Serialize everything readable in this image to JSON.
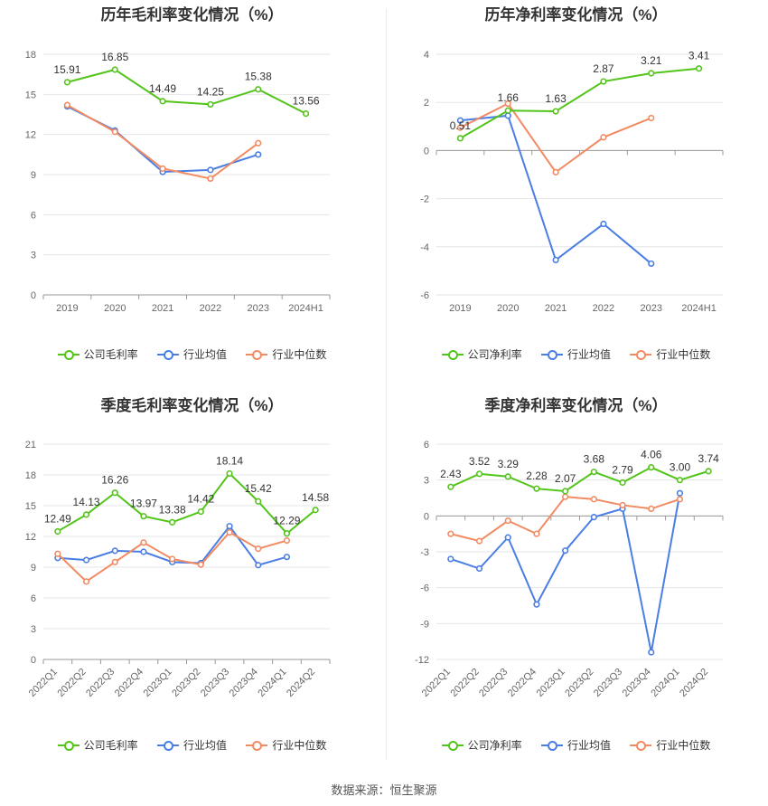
{
  "source": "数据来源：恒生聚源",
  "colors": {
    "company": "#52c41a",
    "avg": "#4a7ee4",
    "median": "#f28a62"
  },
  "chart_data": [
    {
      "type": "line",
      "title": "历年毛利率变化情况（%）",
      "categories": [
        "2019",
        "2020",
        "2021",
        "2022",
        "2023",
        "2024H1"
      ],
      "ylim": [
        0,
        18
      ],
      "yticks": [
        0,
        3,
        6,
        9,
        12,
        15,
        18
      ],
      "series": [
        {
          "name": "公司毛利率",
          "values": [
            15.91,
            16.85,
            14.49,
            14.25,
            15.38,
            13.56
          ],
          "labels": [
            "15.91",
            "16.85",
            "14.49",
            "14.25",
            "15.38",
            "13.56"
          ]
        },
        {
          "name": "行业均值",
          "values": [
            14.1,
            12.3,
            9.2,
            9.35,
            10.5,
            null
          ]
        },
        {
          "name": "行业中位数",
          "values": [
            14.2,
            12.2,
            9.45,
            8.7,
            11.35,
            null
          ]
        }
      ],
      "grid": true,
      "legend": "bottom"
    },
    {
      "type": "line",
      "title": "历年净利率变化情况（%）",
      "categories": [
        "2019",
        "2020",
        "2021",
        "2022",
        "2023",
        "2024H1"
      ],
      "ylim": [
        -6,
        4
      ],
      "yticks": [
        -6,
        -4,
        -2,
        0,
        2,
        4
      ],
      "series": [
        {
          "name": "公司净利率",
          "values": [
            0.51,
            1.66,
            1.63,
            2.87,
            3.21,
            3.41
          ],
          "labels": [
            "0.51",
            "1.66",
            "1.63",
            "2.87",
            "3.21",
            "3.41"
          ]
        },
        {
          "name": "行业均值",
          "values": [
            1.25,
            1.45,
            -4.55,
            -3.05,
            -4.7,
            null
          ]
        },
        {
          "name": "行业中位数",
          "values": [
            0.95,
            1.95,
            -0.9,
            0.55,
            1.35,
            null
          ]
        }
      ],
      "grid": true,
      "legend": "bottom"
    },
    {
      "type": "line",
      "title": "季度毛利率变化情况（%）",
      "categories": [
        "2022Q1",
        "2022Q2",
        "2022Q3",
        "2022Q4",
        "2023Q1",
        "2023Q2",
        "2023Q3",
        "2023Q4",
        "2024Q1",
        "2024Q2"
      ],
      "ylim": [
        0,
        21
      ],
      "yticks": [
        0,
        3,
        6,
        9,
        12,
        15,
        18,
        21
      ],
      "series": [
        {
          "name": "公司毛利率",
          "values": [
            12.49,
            14.13,
            16.26,
            13.97,
            13.38,
            14.42,
            18.14,
            15.42,
            12.29,
            14.58
          ],
          "labels": [
            "12.49",
            "14.13",
            "16.26",
            "13.97",
            "13.38",
            "14.42",
            "18.14",
            "15.42",
            "12.29",
            "14.58"
          ]
        },
        {
          "name": "行业均值",
          "values": [
            9.9,
            9.7,
            10.6,
            10.5,
            9.5,
            9.4,
            13.0,
            9.2,
            10.0,
            null
          ]
        },
        {
          "name": "行业中位数",
          "values": [
            10.3,
            7.6,
            9.5,
            11.4,
            9.8,
            9.25,
            12.4,
            10.8,
            11.6,
            null
          ]
        }
      ],
      "grid": true,
      "legend": "bottom"
    },
    {
      "type": "line",
      "title": "季度净利率变化情况（%）",
      "categories": [
        "2022Q1",
        "2022Q2",
        "2022Q3",
        "2022Q4",
        "2023Q1",
        "2023Q2",
        "2023Q3",
        "2023Q4",
        "2024Q1",
        "2024Q2"
      ],
      "ylim": [
        -12,
        6
      ],
      "yticks": [
        -12,
        -9,
        -6,
        -3,
        0,
        3,
        6
      ],
      "series": [
        {
          "name": "公司净利率",
          "values": [
            2.43,
            3.52,
            3.29,
            2.28,
            2.07,
            3.68,
            2.79,
            4.06,
            3.0,
            3.74
          ],
          "labels": [
            "2.43",
            "3.52",
            "3.29",
            "2.28",
            "2.07",
            "3.68",
            "2.79",
            "4.06",
            "3.00",
            "3.74"
          ]
        },
        {
          "name": "行业均值",
          "values": [
            -3.6,
            -4.4,
            -1.8,
            -7.4,
            -2.9,
            -0.1,
            0.6,
            -11.4,
            1.9,
            null
          ]
        },
        {
          "name": "行业中位数",
          "values": [
            -1.5,
            -2.1,
            -0.4,
            -1.5,
            1.6,
            1.4,
            0.9,
            0.6,
            1.4,
            null
          ]
        }
      ],
      "grid": true,
      "legend": "bottom"
    }
  ]
}
